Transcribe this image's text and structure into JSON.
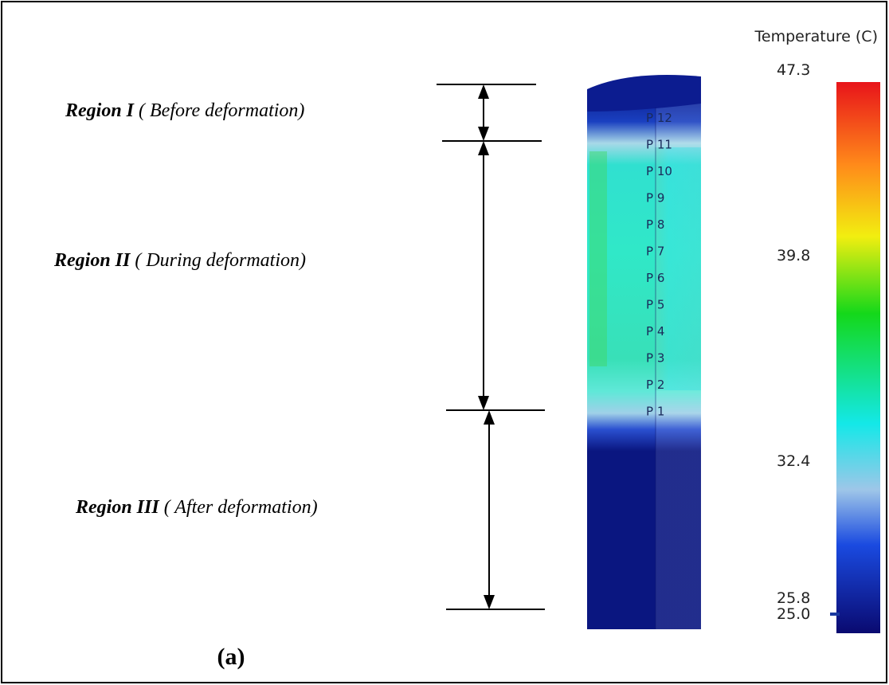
{
  "regions": [
    {
      "name": "Region I",
      "note": "( Before deformation)"
    },
    {
      "name": "Region II",
      "note": "( During deformation)"
    },
    {
      "name": "Region III",
      "note": "( After deformation)"
    }
  ],
  "points": [
    "P 12",
    "P 11",
    "P 10",
    "P 9",
    "P 8",
    "P 7",
    "P 6",
    "P 5",
    "P 4",
    "P 3",
    "P 2",
    "P 1"
  ],
  "colorbar": {
    "title": "Temperature (C)",
    "labels": [
      "47.3",
      "39.8",
      "32.4",
      "25.8",
      "25.0"
    ]
  },
  "caption": "(a)"
}
